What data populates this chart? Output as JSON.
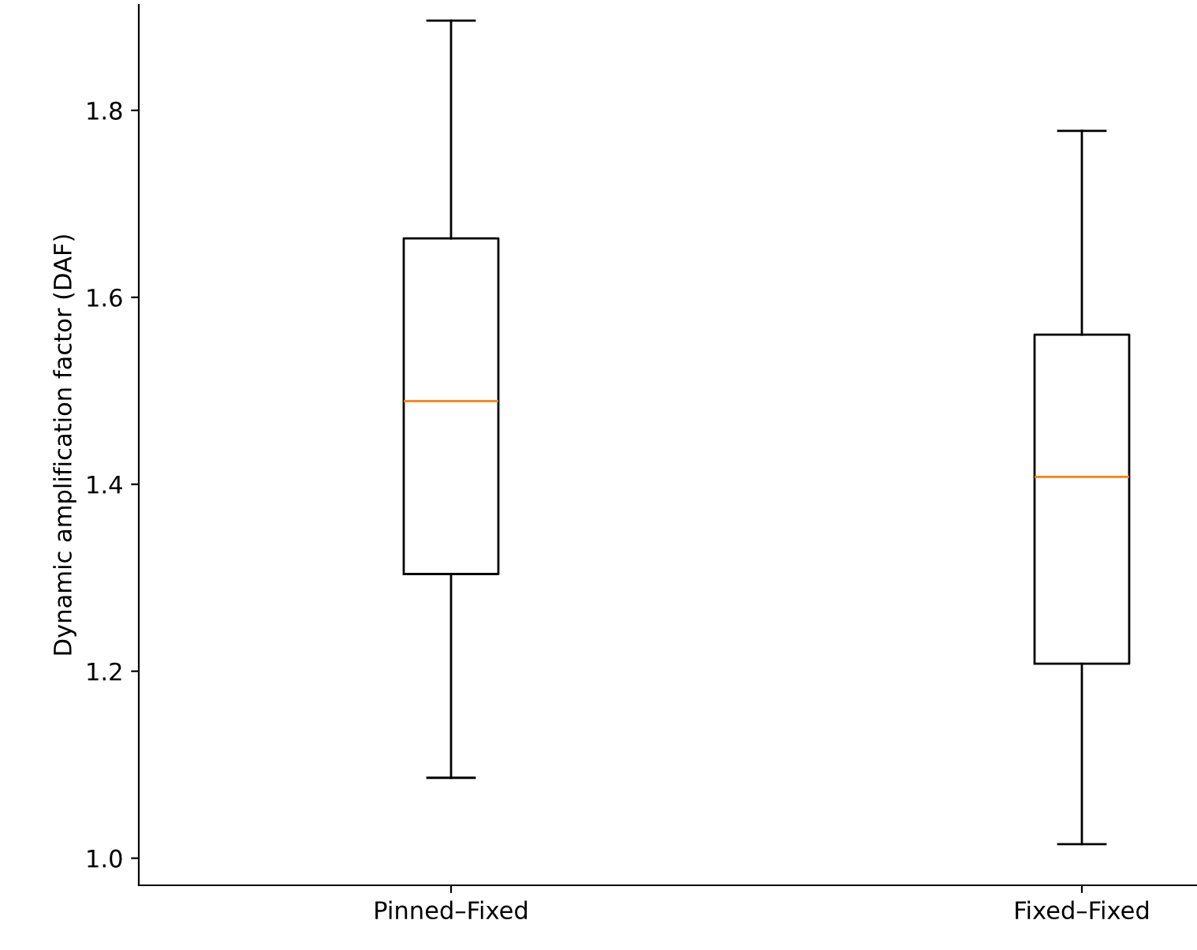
{
  "chart_data": {
    "type": "box",
    "ylabel": "Dynamic amplification factor (DAF)",
    "categories": [
      "Pinned–Fixed",
      "Fixed–Fixed"
    ],
    "boxes": [
      {
        "low": 1.086,
        "q1": 1.304,
        "median": 1.489,
        "q3": 1.663,
        "high": 1.896
      },
      {
        "low": 1.015,
        "q1": 1.208,
        "median": 1.408,
        "q3": 1.56,
        "high": 1.778
      }
    ],
    "ylim": [
      0.971,
      1.913
    ],
    "yticks": [
      {
        "value": 1.0,
        "label": "1.0"
      },
      {
        "value": 1.2,
        "label": "1.2"
      },
      {
        "value": 1.4,
        "label": "1.4"
      },
      {
        "value": 1.6,
        "label": "1.6"
      },
      {
        "value": 1.8,
        "label": "1.8"
      }
    ],
    "grid": false
  }
}
